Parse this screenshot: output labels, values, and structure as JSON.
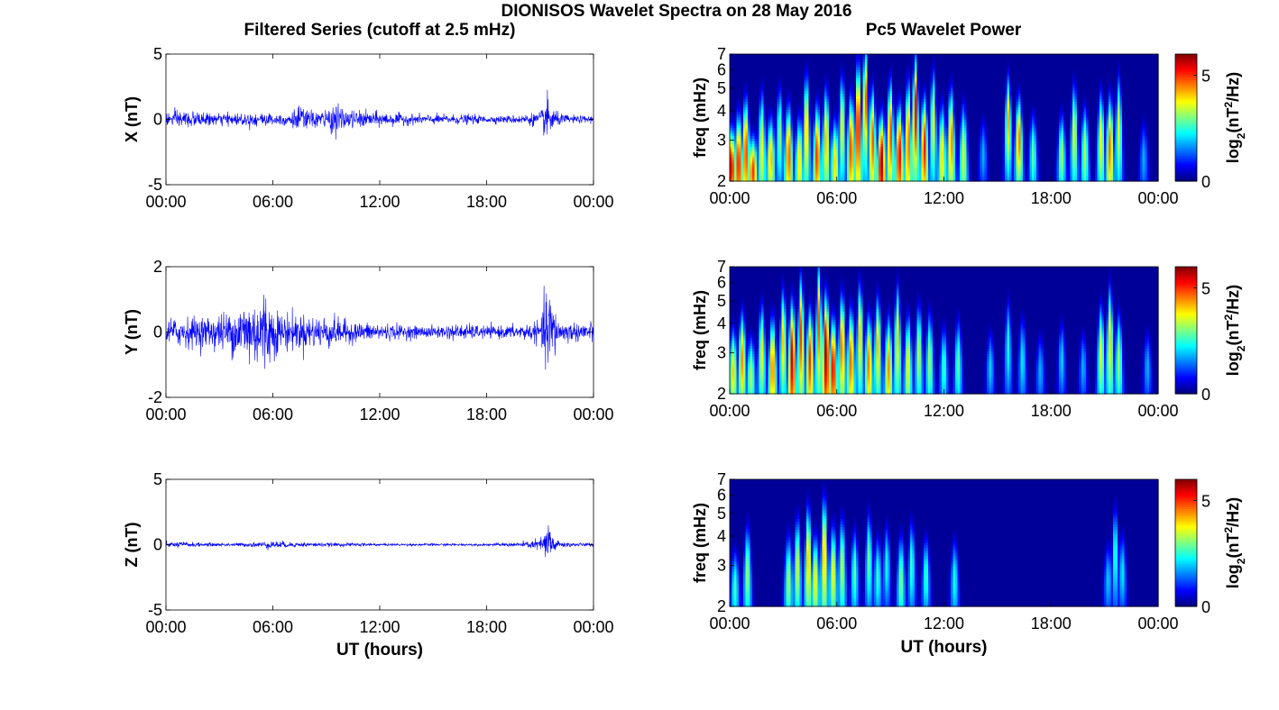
{
  "figure": {
    "title": "DIONISOS Wavelet Spectra on 28 May 2016",
    "left_column_title": "Filtered Series (cutoff at 2.5 mHz)",
    "right_column_title": "Pc5 Wavelet Power"
  },
  "chart_data": [
    {
      "type": "line",
      "ylabel": "X (nT)",
      "xlabel": "",
      "xticks": [
        "00:00",
        "06:00",
        "12:00",
        "18:00",
        "00:00"
      ],
      "xlim_hours": [
        0,
        24
      ],
      "yticks": [
        "-5",
        "0",
        "5"
      ],
      "ylim": [
        -5,
        5
      ],
      "line_color": "#0000ff",
      "envelope": {
        "x_hours": [
          0,
          1,
          2,
          3,
          4,
          5,
          6,
          7,
          7.5,
          8,
          9,
          9.5,
          10,
          11,
          12,
          13,
          14,
          15,
          16,
          17,
          18,
          19,
          20,
          21,
          21.5,
          21.7,
          22,
          23,
          24
        ],
        "amplitude": [
          0.6,
          0.8,
          0.5,
          0.5,
          0.5,
          0.6,
          0.5,
          0.6,
          1.2,
          0.7,
          0.8,
          1.3,
          0.8,
          0.7,
          0.6,
          0.5,
          0.4,
          0.4,
          0.4,
          0.4,
          0.3,
          0.3,
          0.4,
          0.6,
          2.0,
          1.2,
          0.5,
          0.3,
          0.3
        ]
      }
    },
    {
      "type": "line",
      "ylabel": "Y (nT)",
      "xlabel": "",
      "xticks": [
        "00:00",
        "06:00",
        "12:00",
        "18:00",
        "00:00"
      ],
      "xlim_hours": [
        0,
        24
      ],
      "yticks": [
        "-2",
        "0",
        "2"
      ],
      "ylim": [
        -2,
        2
      ],
      "line_color": "#0000ff",
      "envelope": {
        "x_hours": [
          0,
          1,
          2,
          3,
          4,
          4.5,
          5,
          5.5,
          6,
          7,
          8,
          9,
          10,
          11,
          12,
          13,
          14,
          15,
          16,
          17,
          18,
          19,
          20,
          21,
          21.5,
          21.8,
          22,
          23,
          24
        ],
        "amplitude": [
          0.45,
          0.5,
          0.5,
          0.6,
          0.8,
          1.2,
          1.1,
          1.5,
          0.8,
          0.6,
          0.55,
          0.55,
          0.4,
          0.3,
          0.3,
          0.25,
          0.2,
          0.2,
          0.25,
          0.25,
          0.2,
          0.2,
          0.25,
          0.35,
          1.7,
          0.9,
          0.4,
          0.3,
          0.4
        ]
      }
    },
    {
      "type": "line",
      "ylabel": "Z (nT)",
      "xlabel": "UT (hours)",
      "xticks": [
        "00:00",
        "06:00",
        "12:00",
        "18:00",
        "00:00"
      ],
      "xlim_hours": [
        0,
        24
      ],
      "yticks": [
        "-5",
        "0",
        "5"
      ],
      "ylim": [
        -5,
        5
      ],
      "line_color": "#0000ff",
      "envelope": {
        "x_hours": [
          0,
          1,
          2,
          3,
          4,
          5,
          6,
          7,
          8,
          9,
          10,
          11,
          12,
          13,
          14,
          15,
          16,
          17,
          18,
          19,
          20,
          21,
          21.5,
          21.7,
          22,
          23,
          24
        ],
        "amplitude": [
          0.2,
          0.25,
          0.15,
          0.15,
          0.15,
          0.2,
          0.35,
          0.2,
          0.2,
          0.15,
          0.15,
          0.15,
          0.1,
          0.1,
          0.1,
          0.1,
          0.1,
          0.1,
          0.1,
          0.15,
          0.2,
          0.5,
          2.1,
          1.0,
          0.3,
          0.15,
          0.15
        ]
      }
    },
    {
      "type": "heatmap",
      "ylabel": "freq (mHz)",
      "xlabel": "",
      "xticks": [
        "00:00",
        "06:00",
        "12:00",
        "18:00",
        "00:00"
      ],
      "xlim_hours": [
        0,
        24
      ],
      "yticks": [
        "2",
        "3",
        "4",
        "5",
        "6",
        "7"
      ],
      "ylim_mHz": [
        2,
        7
      ],
      "y_scale": "log",
      "colorscale": "jet",
      "colorbar": {
        "ticks": [
          "0",
          "5"
        ],
        "range": [
          0,
          6
        ],
        "label": "log2(nT2/Hz)"
      },
      "bursts": [
        {
          "t_hours": 0.1,
          "f_mHz": 2.3,
          "power": 5.5,
          "f_width_mHz": 1.2
        },
        {
          "t_hours": 0.5,
          "f_mHz": 2.4,
          "power": 5.2,
          "f_width_mHz": 1.6
        },
        {
          "t_hours": 0.9,
          "f_mHz": 2.7,
          "power": 5.0,
          "f_width_mHz": 2.0
        },
        {
          "t_hours": 1.3,
          "f_mHz": 2.2,
          "power": 5.0,
          "f_width_mHz": 1.0
        },
        {
          "t_hours": 1.8,
          "f_mHz": 2.8,
          "power": 3.8,
          "f_width_mHz": 2.2
        },
        {
          "t_hours": 2.3,
          "f_mHz": 2.5,
          "power": 4.2,
          "f_width_mHz": 1.4
        },
        {
          "t_hours": 2.8,
          "f_mHz": 3.2,
          "power": 3.2,
          "f_width_mHz": 2.0
        },
        {
          "t_hours": 3.3,
          "f_mHz": 2.6,
          "power": 4.8,
          "f_width_mHz": 1.8
        },
        {
          "t_hours": 3.9,
          "f_mHz": 2.4,
          "power": 4.0,
          "f_width_mHz": 1.5
        },
        {
          "t_hours": 4.3,
          "f_mHz": 3.4,
          "power": 4.3,
          "f_width_mHz": 2.6
        },
        {
          "t_hours": 4.9,
          "f_mHz": 2.6,
          "power": 5.0,
          "f_width_mHz": 1.8
        },
        {
          "t_hours": 5.4,
          "f_mHz": 3.0,
          "power": 4.2,
          "f_width_mHz": 2.2
        },
        {
          "t_hours": 5.9,
          "f_mHz": 2.4,
          "power": 4.0,
          "f_width_mHz": 1.4
        },
        {
          "t_hours": 6.3,
          "f_mHz": 3.5,
          "power": 3.8,
          "f_width_mHz": 2.4
        },
        {
          "t_hours": 6.8,
          "f_mHz": 2.8,
          "power": 5.0,
          "f_width_mHz": 2.0
        },
        {
          "t_hours": 7.2,
          "f_mHz": 3.6,
          "power": 5.6,
          "f_width_mHz": 3.2
        },
        {
          "t_hours": 7.6,
          "f_mHz": 4.6,
          "power": 5.2,
          "f_width_mHz": 3.4
        },
        {
          "t_hours": 8.0,
          "f_mHz": 3.0,
          "power": 4.8,
          "f_width_mHz": 2.2
        },
        {
          "t_hours": 8.5,
          "f_mHz": 2.4,
          "power": 5.8,
          "f_width_mHz": 1.6
        },
        {
          "t_hours": 9.0,
          "f_mHz": 3.2,
          "power": 5.0,
          "f_width_mHz": 2.4
        },
        {
          "t_hours": 9.5,
          "f_mHz": 2.6,
          "power": 5.4,
          "f_width_mHz": 1.8
        },
        {
          "t_hours": 10.0,
          "f_mHz": 3.0,
          "power": 4.8,
          "f_width_mHz": 2.6
        },
        {
          "t_hours": 10.4,
          "f_mHz": 4.0,
          "power": 5.5,
          "f_width_mHz": 3.2
        },
        {
          "t_hours": 10.9,
          "f_mHz": 2.8,
          "power": 5.2,
          "f_width_mHz": 2.0
        },
        {
          "t_hours": 11.4,
          "f_mHz": 3.6,
          "power": 3.8,
          "f_width_mHz": 2.6
        },
        {
          "t_hours": 11.9,
          "f_mHz": 2.6,
          "power": 4.0,
          "f_width_mHz": 1.8
        },
        {
          "t_hours": 12.4,
          "f_mHz": 3.0,
          "power": 4.6,
          "f_width_mHz": 2.2
        },
        {
          "t_hours": 13.1,
          "f_mHz": 2.6,
          "power": 3.6,
          "f_width_mHz": 1.8
        },
        {
          "t_hours": 14.2,
          "f_mHz": 2.6,
          "power": 1.8,
          "f_width_mHz": 1.2
        },
        {
          "t_hours": 15.6,
          "f_mHz": 3.6,
          "power": 4.2,
          "f_width_mHz": 2.2
        },
        {
          "t_hours": 16.2,
          "f_mHz": 3.0,
          "power": 4.6,
          "f_width_mHz": 1.8
        },
        {
          "t_hours": 17.0,
          "f_mHz": 2.6,
          "power": 2.8,
          "f_width_mHz": 1.4
        },
        {
          "t_hours": 18.6,
          "f_mHz": 2.6,
          "power": 3.2,
          "f_width_mHz": 1.4
        },
        {
          "t_hours": 19.3,
          "f_mHz": 3.2,
          "power": 3.6,
          "f_width_mHz": 2.2
        },
        {
          "t_hours": 19.9,
          "f_mHz": 2.7,
          "power": 3.4,
          "f_width_mHz": 1.6
        },
        {
          "t_hours": 20.8,
          "f_mHz": 3.0,
          "power": 3.8,
          "f_width_mHz": 2.0
        },
        {
          "t_hours": 21.3,
          "f_mHz": 2.8,
          "power": 4.6,
          "f_width_mHz": 2.0
        },
        {
          "t_hours": 21.8,
          "f_mHz": 3.4,
          "power": 3.6,
          "f_width_mHz": 2.4
        },
        {
          "t_hours": 23.2,
          "f_mHz": 2.5,
          "power": 1.8,
          "f_width_mHz": 1.2
        }
      ]
    },
    {
      "type": "heatmap",
      "ylabel": "freq (mHz)",
      "xlabel": "",
      "xticks": [
        "00:00",
        "06:00",
        "12:00",
        "18:00",
        "00:00"
      ],
      "xlim_hours": [
        0,
        24
      ],
      "yticks": [
        "2",
        "3",
        "4",
        "5",
        "6",
        "7"
      ],
      "ylim_mHz": [
        2,
        7
      ],
      "y_scale": "log",
      "colorscale": "jet",
      "colorbar": {
        "ticks": [
          "0",
          "5"
        ],
        "range": [
          0,
          6
        ],
        "label": "log2(nT2/Hz)"
      },
      "bursts": [
        {
          "t_hours": 0.2,
          "f_mHz": 2.5,
          "power": 4.0,
          "f_width_mHz": 1.4
        },
        {
          "t_hours": 0.7,
          "f_mHz": 2.8,
          "power": 4.4,
          "f_width_mHz": 1.8
        },
        {
          "t_hours": 1.2,
          "f_mHz": 2.4,
          "power": 3.4,
          "f_width_mHz": 1.2
        },
        {
          "t_hours": 1.8,
          "f_mHz": 3.0,
          "power": 3.8,
          "f_width_mHz": 2.0
        },
        {
          "t_hours": 2.4,
          "f_mHz": 2.6,
          "power": 4.6,
          "f_width_mHz": 1.8
        },
        {
          "t_hours": 3.0,
          "f_mHz": 3.4,
          "power": 4.2,
          "f_width_mHz": 2.4
        },
        {
          "t_hours": 3.5,
          "f_mHz": 2.8,
          "power": 5.6,
          "f_width_mHz": 2.4
        },
        {
          "t_hours": 4.0,
          "f_mHz": 3.6,
          "power": 5.0,
          "f_width_mHz": 3.0
        },
        {
          "t_hours": 4.5,
          "f_mHz": 2.8,
          "power": 5.0,
          "f_width_mHz": 2.0
        },
        {
          "t_hours": 5.0,
          "f_mHz": 4.0,
          "power": 4.8,
          "f_width_mHz": 3.4
        },
        {
          "t_hours": 5.4,
          "f_mHz": 3.0,
          "power": 6.0,
          "f_width_mHz": 2.6
        },
        {
          "t_hours": 5.8,
          "f_mHz": 2.6,
          "power": 5.4,
          "f_width_mHz": 1.8
        },
        {
          "t_hours": 6.3,
          "f_mHz": 3.2,
          "power": 4.8,
          "f_width_mHz": 2.4
        },
        {
          "t_hours": 6.8,
          "f_mHz": 2.8,
          "power": 4.8,
          "f_width_mHz": 2.0
        },
        {
          "t_hours": 7.3,
          "f_mHz": 3.6,
          "power": 4.2,
          "f_width_mHz": 2.6
        },
        {
          "t_hours": 7.8,
          "f_mHz": 2.7,
          "power": 4.6,
          "f_width_mHz": 1.8
        },
        {
          "t_hours": 8.3,
          "f_mHz": 3.2,
          "power": 4.2,
          "f_width_mHz": 2.2
        },
        {
          "t_hours": 8.9,
          "f_mHz": 2.6,
          "power": 4.4,
          "f_width_mHz": 1.8
        },
        {
          "t_hours": 9.4,
          "f_mHz": 3.4,
          "power": 4.0,
          "f_width_mHz": 2.6
        },
        {
          "t_hours": 10.0,
          "f_mHz": 2.7,
          "power": 3.8,
          "f_width_mHz": 1.8
        },
        {
          "t_hours": 10.6,
          "f_mHz": 3.0,
          "power": 3.4,
          "f_width_mHz": 2.0
        },
        {
          "t_hours": 11.2,
          "f_mHz": 2.8,
          "power": 3.2,
          "f_width_mHz": 1.8
        },
        {
          "t_hours": 12.0,
          "f_mHz": 2.6,
          "power": 2.6,
          "f_width_mHz": 1.4
        },
        {
          "t_hours": 12.8,
          "f_mHz": 2.7,
          "power": 2.8,
          "f_width_mHz": 1.6
        },
        {
          "t_hours": 14.6,
          "f_mHz": 2.6,
          "power": 2.0,
          "f_width_mHz": 1.2
        },
        {
          "t_hours": 15.6,
          "f_mHz": 3.2,
          "power": 2.4,
          "f_width_mHz": 2.0
        },
        {
          "t_hours": 16.4,
          "f_mHz": 2.8,
          "power": 2.2,
          "f_width_mHz": 1.6
        },
        {
          "t_hours": 17.4,
          "f_mHz": 2.5,
          "power": 1.8,
          "f_width_mHz": 1.2
        },
        {
          "t_hours": 18.6,
          "f_mHz": 2.8,
          "power": 2.0,
          "f_width_mHz": 1.4
        },
        {
          "t_hours": 19.8,
          "f_mHz": 2.6,
          "power": 1.8,
          "f_width_mHz": 1.2
        },
        {
          "t_hours": 20.8,
          "f_mHz": 3.0,
          "power": 3.6,
          "f_width_mHz": 2.0
        },
        {
          "t_hours": 21.3,
          "f_mHz": 3.4,
          "power": 4.0,
          "f_width_mHz": 2.6
        },
        {
          "t_hours": 21.8,
          "f_mHz": 2.8,
          "power": 3.2,
          "f_width_mHz": 1.8
        },
        {
          "t_hours": 23.4,
          "f_mHz": 2.6,
          "power": 1.8,
          "f_width_mHz": 1.2
        }
      ]
    },
    {
      "type": "heatmap",
      "ylabel": "freq (mHz)",
      "xlabel": "UT (hours)",
      "xticks": [
        "00:00",
        "06:00",
        "12:00",
        "18:00",
        "00:00"
      ],
      "xlim_hours": [
        0,
        24
      ],
      "yticks": [
        "2",
        "3",
        "4",
        "5",
        "6",
        "7"
      ],
      "ylim_mHz": [
        2,
        7
      ],
      "y_scale": "log",
      "colorscale": "jet",
      "colorbar": {
        "ticks": [
          "0",
          "5"
        ],
        "range": [
          0,
          6
        ],
        "label": "log2(nT2/Hz)"
      },
      "bursts": [
        {
          "t_hours": 0.3,
          "f_mHz": 2.4,
          "power": 2.6,
          "f_width_mHz": 1.2
        },
        {
          "t_hours": 1.0,
          "f_mHz": 2.8,
          "power": 3.2,
          "f_width_mHz": 1.8
        },
        {
          "t_hours": 3.3,
          "f_mHz": 2.6,
          "power": 3.2,
          "f_width_mHz": 1.6
        },
        {
          "t_hours": 3.8,
          "f_mHz": 3.0,
          "power": 3.6,
          "f_width_mHz": 2.0
        },
        {
          "t_hours": 4.4,
          "f_mHz": 3.2,
          "power": 4.2,
          "f_width_mHz": 2.4
        },
        {
          "t_hours": 4.8,
          "f_mHz": 2.6,
          "power": 3.8,
          "f_width_mHz": 1.6
        },
        {
          "t_hours": 5.3,
          "f_mHz": 3.4,
          "power": 4.4,
          "f_width_mHz": 2.8
        },
        {
          "t_hours": 5.8,
          "f_mHz": 2.8,
          "power": 3.8,
          "f_width_mHz": 1.8
        },
        {
          "t_hours": 6.3,
          "f_mHz": 3.0,
          "power": 3.4,
          "f_width_mHz": 2.0
        },
        {
          "t_hours": 7.0,
          "f_mHz": 2.8,
          "power": 2.8,
          "f_width_mHz": 1.6
        },
        {
          "t_hours": 7.8,
          "f_mHz": 3.2,
          "power": 3.0,
          "f_width_mHz": 2.0
        },
        {
          "t_hours": 8.3,
          "f_mHz": 2.7,
          "power": 2.6,
          "f_width_mHz": 1.4
        },
        {
          "t_hours": 8.8,
          "f_mHz": 3.0,
          "power": 2.4,
          "f_width_mHz": 1.6
        },
        {
          "t_hours": 9.6,
          "f_mHz": 2.6,
          "power": 3.0,
          "f_width_mHz": 1.6
        },
        {
          "t_hours": 10.2,
          "f_mHz": 3.0,
          "power": 2.6,
          "f_width_mHz": 1.8
        },
        {
          "t_hours": 11.0,
          "f_mHz": 2.7,
          "power": 2.6,
          "f_width_mHz": 1.4
        },
        {
          "t_hours": 12.6,
          "f_mHz": 2.6,
          "power": 2.4,
          "f_width_mHz": 1.4
        },
        {
          "t_hours": 21.2,
          "f_mHz": 2.6,
          "power": 2.0,
          "f_width_mHz": 1.2
        },
        {
          "t_hours": 21.6,
          "f_mHz": 3.4,
          "power": 2.6,
          "f_width_mHz": 2.2
        },
        {
          "t_hours": 22.0,
          "f_mHz": 2.8,
          "power": 2.2,
          "f_width_mHz": 1.4
        }
      ]
    }
  ]
}
